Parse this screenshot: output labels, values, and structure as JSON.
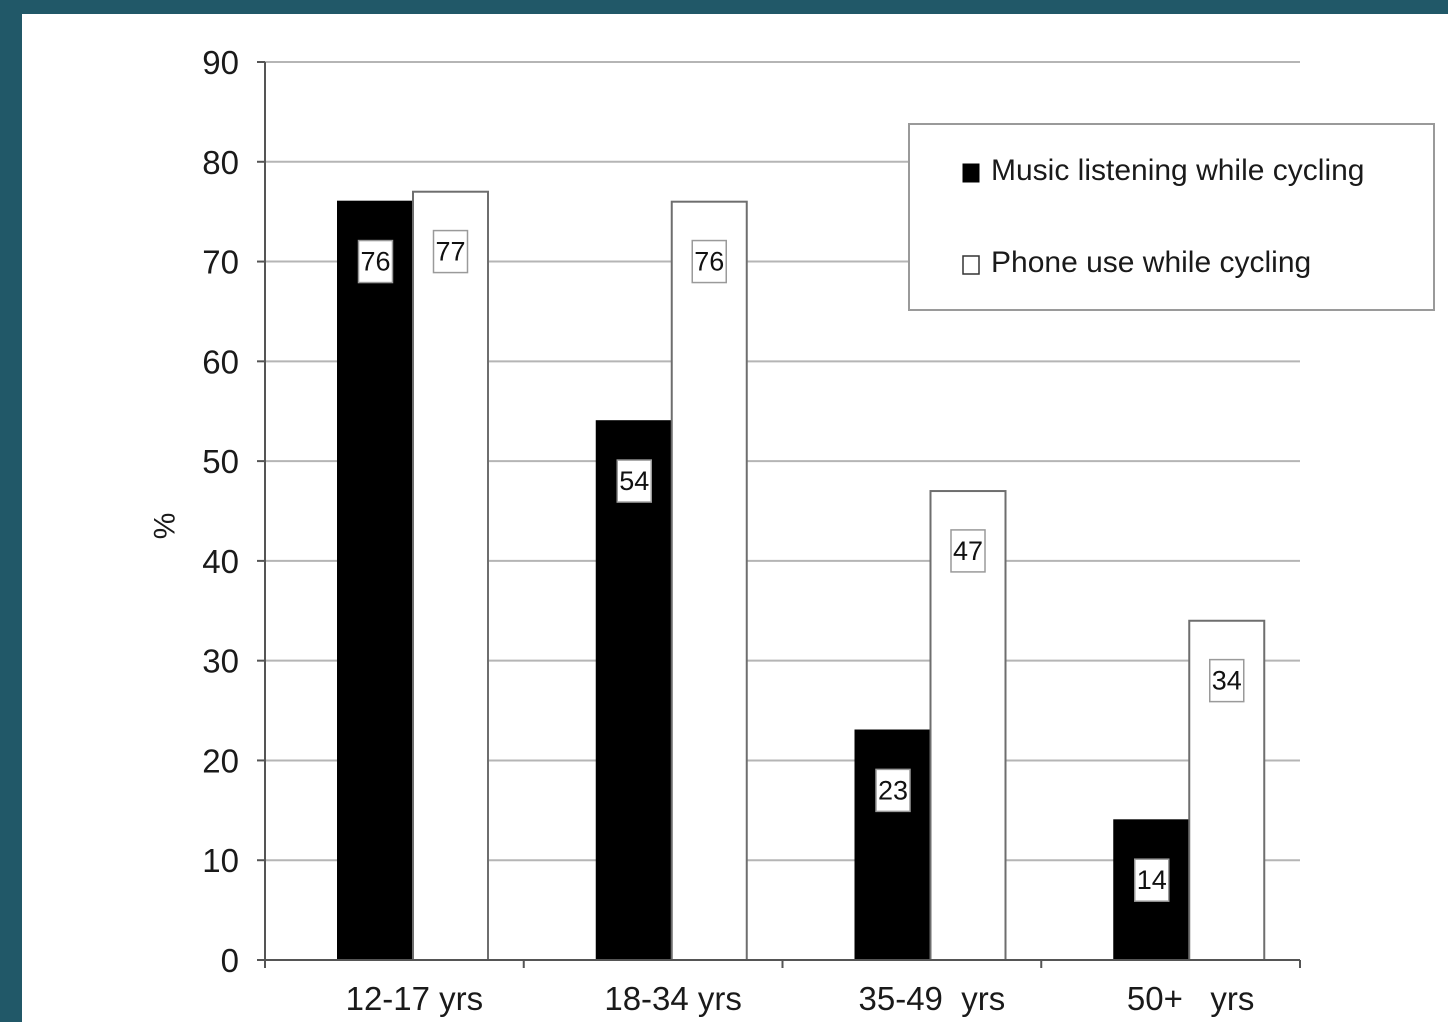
{
  "chart_data": {
    "type": "bar",
    "categories": [
      "12-17 yrs",
      "18-34 yrs",
      "35-49  yrs",
      "50+   yrs"
    ],
    "series": [
      {
        "name": "Music listening while cycling",
        "values": [
          76,
          54,
          23,
          14
        ],
        "color": "#000000"
      },
      {
        "name": "Phone use while cycling",
        "values": [
          77,
          76,
          47,
          34
        ],
        "color": "#ffffff"
      }
    ],
    "data_labels": [
      [
        "76",
        "54",
        "23",
        "14"
      ],
      [
        "77",
        "76",
        "47",
        "34"
      ]
    ],
    "title": "",
    "xlabel": "",
    "ylabel": "%",
    "ylim": [
      0,
      90
    ],
    "yticks": [
      0,
      10,
      20,
      30,
      40,
      50,
      60,
      70,
      80,
      90
    ],
    "grid": true,
    "legend_position": "top-right"
  }
}
